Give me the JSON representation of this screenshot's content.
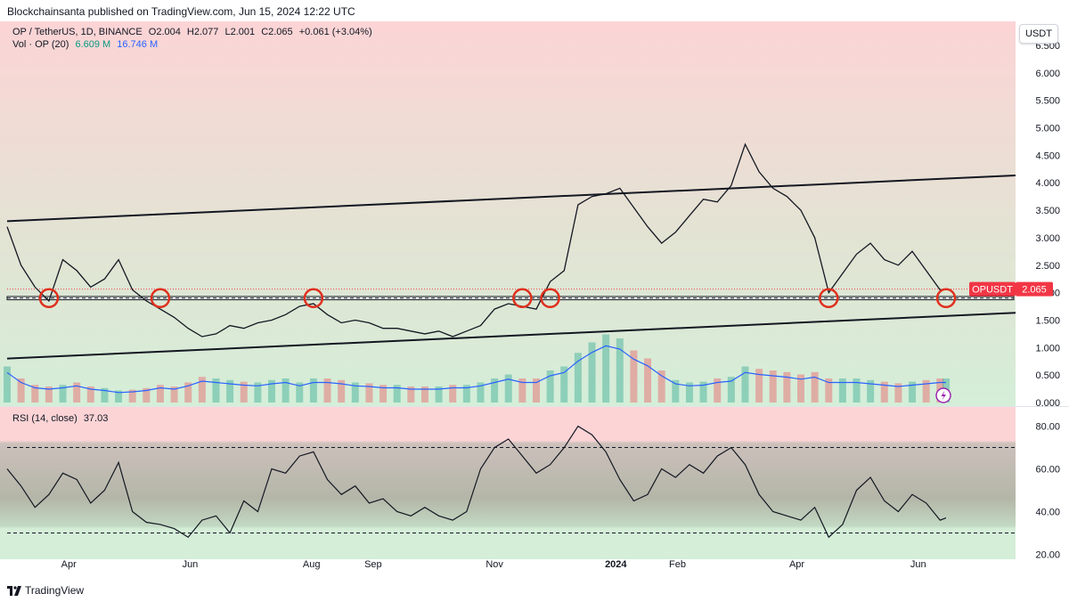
{
  "header": {
    "published": "Blockchainsanta published on TradingView.com, Jun 15, 2024 12:22 UTC"
  },
  "legend": {
    "symbol": "OP / TetherUS, 1D, BINANCE",
    "ohlc": {
      "open": "O2.004",
      "high": "H2.077",
      "low": "L2.001",
      "close": "C2.065",
      "change": "+0.061 (+3.04%)"
    },
    "volume_label": "Vol · OP (20)",
    "volume_value": "6.609 M",
    "volume_ma": "16.746 M",
    "rsi_label": "RSI (14, close)",
    "rsi_value": "37.03"
  },
  "currency_button": "USDT",
  "price_tag": {
    "symbol": "OPUSDT",
    "value": "2.065"
  },
  "footer": {
    "brand": "TradingView"
  },
  "colors": {
    "top_zone": "#fcd4d6",
    "bottom_zone": "#d6f0d9",
    "price_line": "#131722",
    "volume_ma": "#2962ff",
    "circle": "#e0301e",
    "tag": "#f23645"
  },
  "chart_data": [
    {
      "type": "line",
      "title": "OP / TetherUS, 1D, BINANCE",
      "x_ticks": [
        "Apr",
        "Jun",
        "Aug",
        "Sep",
        "Nov",
        "2024",
        "Feb",
        "Apr",
        "Jun"
      ],
      "y_ticks": [
        "0.000",
        "0.500",
        "1.000",
        "1.500",
        "2.000",
        "2.500",
        "3.000",
        "3.500",
        "4.000",
        "4.500",
        "5.000",
        "5.500",
        "6.000",
        "6.500"
      ],
      "ylim": [
        0,
        6.5
      ],
      "x": [
        "2023-03-01",
        "2023-03-08",
        "2023-03-15",
        "2023-03-22",
        "2023-03-29",
        "2023-04-05",
        "2023-04-12",
        "2023-04-19",
        "2023-04-26",
        "2023-05-03",
        "2023-05-10",
        "2023-05-17",
        "2023-05-24",
        "2023-05-31",
        "2023-06-07",
        "2023-06-14",
        "2023-06-21",
        "2023-06-28",
        "2023-07-05",
        "2023-07-12",
        "2023-07-19",
        "2023-07-26",
        "2023-08-02",
        "2023-08-09",
        "2023-08-16",
        "2023-08-23",
        "2023-08-30",
        "2023-09-06",
        "2023-09-13",
        "2023-09-20",
        "2023-09-27",
        "2023-10-04",
        "2023-10-11",
        "2023-10-18",
        "2023-10-25",
        "2023-11-01",
        "2023-11-08",
        "2023-11-15",
        "2023-11-22",
        "2023-11-29",
        "2023-12-06",
        "2023-12-13",
        "2023-12-20",
        "2023-12-27",
        "2024-01-03",
        "2024-01-10",
        "2024-01-17",
        "2024-01-24",
        "2024-01-31",
        "2024-02-07",
        "2024-02-14",
        "2024-02-21",
        "2024-02-28",
        "2024-03-06",
        "2024-03-13",
        "2024-03-20",
        "2024-03-27",
        "2024-04-03",
        "2024-04-10",
        "2024-04-17",
        "2024-04-24",
        "2024-05-01",
        "2024-05-08",
        "2024-05-15",
        "2024-05-22",
        "2024-05-29",
        "2024-06-05",
        "2024-06-12",
        "2024-06-15"
      ],
      "series": [
        {
          "values": [
            3.2,
            2.5,
            2.1,
            1.85,
            2.6,
            2.4,
            2.1,
            2.25,
            2.6,
            2.05,
            1.85,
            1.7,
            1.55,
            1.35,
            1.2,
            1.25,
            1.4,
            1.35,
            1.45,
            1.5,
            1.6,
            1.75,
            1.8,
            1.6,
            1.45,
            1.5,
            1.45,
            1.35,
            1.35,
            1.3,
            1.25,
            1.3,
            1.2,
            1.3,
            1.4,
            1.7,
            1.8,
            1.75,
            1.7,
            2.2,
            2.4,
            3.6,
            3.75,
            3.8,
            3.9,
            3.55,
            3.2,
            2.9,
            3.1,
            3.4,
            3.7,
            3.65,
            3.95,
            4.7,
            4.2,
            3.9,
            3.75,
            3.5,
            3.0,
            2.0,
            2.35,
            2.7,
            2.9,
            2.6,
            2.5,
            2.75,
            2.4,
            2.05,
            2.065
          ]
        },
        {
          "name": "Vol · OP (20)",
          "values": [
            0.45,
            0.3,
            0.22,
            0.2,
            0.22,
            0.25,
            0.2,
            0.18,
            0.15,
            0.16,
            0.18,
            0.22,
            0.2,
            0.25,
            0.32,
            0.3,
            0.28,
            0.26,
            0.25,
            0.28,
            0.3,
            0.25,
            0.3,
            0.3,
            0.28,
            0.25,
            0.24,
            0.22,
            0.22,
            0.2,
            0.2,
            0.2,
            0.22,
            0.22,
            0.25,
            0.3,
            0.35,
            0.3,
            0.3,
            0.4,
            0.45,
            0.62,
            0.75,
            0.85,
            0.8,
            0.65,
            0.55,
            0.4,
            0.28,
            0.25,
            0.26,
            0.3,
            0.32,
            0.45,
            0.42,
            0.4,
            0.38,
            0.35,
            0.38,
            0.3,
            0.3,
            0.3,
            0.28,
            0.26,
            0.24,
            0.26,
            0.28,
            0.3,
            0.3
          ]
        }
      ],
      "trendlines": [
        {
          "from": [
            "2023-03-01",
            3.3
          ],
          "to": [
            "2024-06-18",
            4.08
          ]
        },
        {
          "from": [
            "2023-03-01",
            0.8
          ],
          "to": [
            "2024-06-18",
            1.58
          ]
        }
      ],
      "support_band": [
        1.87,
        1.93
      ],
      "last_price": 2.065
    },
    {
      "type": "line",
      "title": "RSI (14, close)",
      "x_ticks": [
        "Apr",
        "Jun",
        "Aug",
        "Sep",
        "Nov",
        "2024",
        "Feb",
        "Apr",
        "Jun"
      ],
      "y_ticks": [
        "20.00",
        "40.00",
        "60.00",
        "80.00"
      ],
      "ylim": [
        16,
        84
      ],
      "levels": [
        30,
        70
      ],
      "series": [
        {
          "name": "RSI (14, close)",
          "values": [
            60,
            52,
            42,
            48,
            58,
            55,
            44,
            50,
            63,
            40,
            35,
            34,
            32,
            28,
            36,
            38,
            30,
            45,
            40,
            60,
            58,
            66,
            68,
            55,
            48,
            52,
            44,
            46,
            40,
            38,
            42,
            38,
            36,
            40,
            60,
            70,
            74,
            66,
            58,
            62,
            70,
            80,
            76,
            68,
            55,
            45,
            48,
            60,
            56,
            62,
            58,
            66,
            70,
            62,
            48,
            40,
            38,
            36,
            42,
            28,
            34,
            50,
            56,
            45,
            40,
            48,
            44,
            36,
            37.03
          ]
        }
      ]
    }
  ]
}
